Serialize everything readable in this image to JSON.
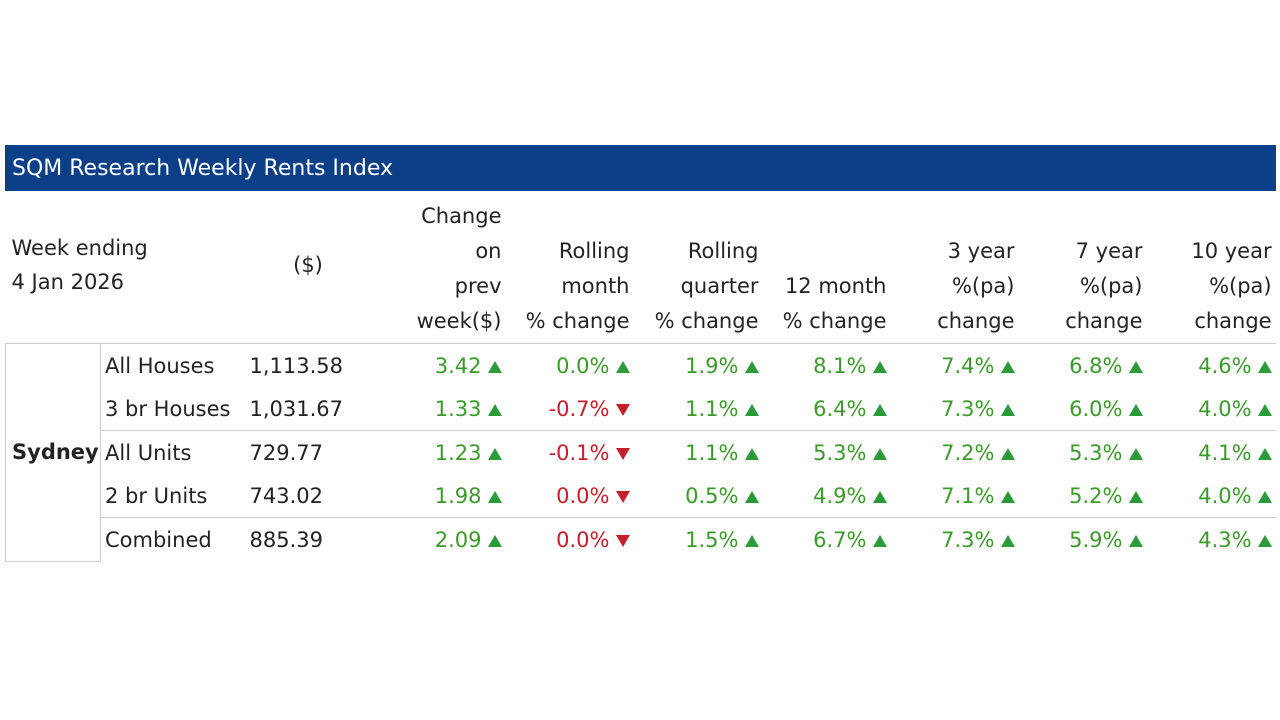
{
  "title": "SQM Research Weekly Rents Index",
  "header": {
    "week": "Week ending\n4 Jan 2026",
    "columns": [
      "($)",
      "Change\non\nprev\nweek($)",
      "Rolling\nmonth\n% change",
      "Rolling\nquarter\n% change",
      "12 month\n% change",
      "3 year\n%(pa)\nchange",
      "7 year\n%(pa)\nchange",
      "10 year\n%(pa)\nchange"
    ]
  },
  "region": "Sydney",
  "rows": [
    {
      "label": "All Houses",
      "value": "1,113.58",
      "changes": [
        "3.42",
        "0.0%",
        "1.9%",
        "8.1%",
        "7.4%",
        "6.8%",
        "4.6%"
      ],
      "trends": [
        "up",
        "up",
        "up",
        "up",
        "up",
        "up",
        "up"
      ]
    },
    {
      "label": "3 br Houses",
      "value": "1,031.67",
      "changes": [
        "1.33",
        "-0.7%",
        "1.1%",
        "6.4%",
        "7.3%",
        "6.0%",
        "4.0%"
      ],
      "trends": [
        "up",
        "down",
        "up",
        "up",
        "up",
        "up",
        "up"
      ]
    },
    {
      "label": "All Units",
      "value": "729.77",
      "changes": [
        "1.23",
        "-0.1%",
        "1.1%",
        "5.3%",
        "7.2%",
        "5.3%",
        "4.1%"
      ],
      "trends": [
        "up",
        "down",
        "up",
        "up",
        "up",
        "up",
        "up"
      ]
    },
    {
      "label": "2 br Units",
      "value": "743.02",
      "changes": [
        "1.98",
        "0.0%",
        "0.5%",
        "4.9%",
        "7.1%",
        "5.2%",
        "4.0%"
      ],
      "trends": [
        "up",
        "down",
        "up",
        "up",
        "up",
        "up",
        "up"
      ]
    },
    {
      "label": "Combined",
      "value": "885.39",
      "changes": [
        "2.09",
        "0.0%",
        "1.5%",
        "6.7%",
        "7.3%",
        "5.9%",
        "4.3%"
      ],
      "trends": [
        "up",
        "down",
        "up",
        "up",
        "up",
        "up",
        "up"
      ]
    }
  ]
}
